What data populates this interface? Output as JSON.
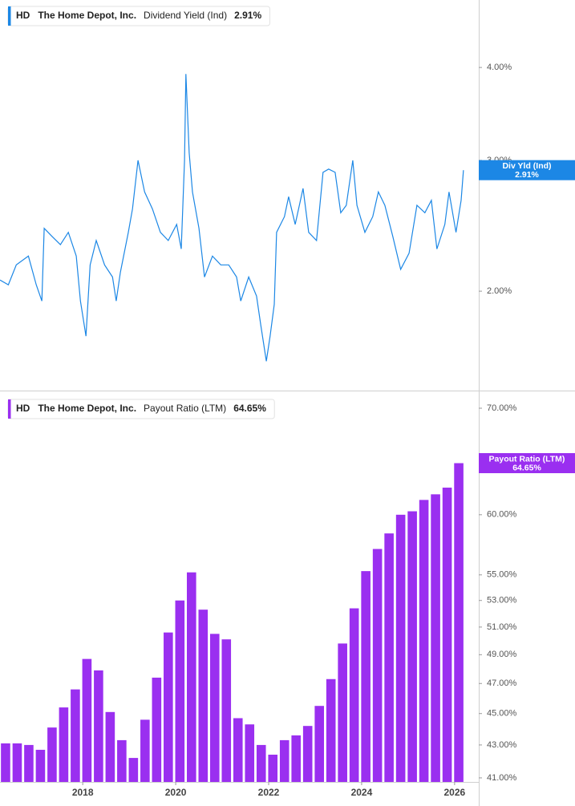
{
  "chart_data": [
    {
      "type": "line",
      "ticker": "HD",
      "company": "The Home Depot, Inc.",
      "log_scale": true,
      "xlim": [
        2016.22,
        2026.52
      ],
      "ylim": [
        1.47,
        4.93
      ],
      "yticks": [
        {
          "value": 2,
          "label": "2.00%"
        },
        {
          "value": 3,
          "label": "3.00%"
        },
        {
          "value": 4,
          "label": "4.00%"
        }
      ],
      "series": [
        {
          "name": "Dividend Yield (Ind)",
          "short_name": "Div Yld (Ind)",
          "color": "#1c87e5",
          "last_value_label": "2.91%",
          "x": [
            2016.22,
            2016.4,
            2016.57,
            2016.83,
            2017.0,
            2017.12,
            2017.17,
            2017.34,
            2017.52,
            2017.69,
            2017.86,
            2017.95,
            2018.07,
            2018.16,
            2018.29,
            2018.47,
            2018.64,
            2018.72,
            2018.81,
            2018.98,
            2019.07,
            2019.19,
            2019.33,
            2019.5,
            2019.67,
            2019.84,
            2020.02,
            2020.12,
            2020.19,
            2020.22,
            2020.29,
            2020.36,
            2020.5,
            2020.62,
            2020.79,
            2020.97,
            2021.14,
            2021.31,
            2021.4,
            2021.57,
            2021.74,
            2021.83,
            2021.95,
            2022.03,
            2022.12,
            2022.17,
            2022.34,
            2022.43,
            2022.57,
            2022.74,
            2022.86,
            2023.03,
            2023.17,
            2023.29,
            2023.43,
            2023.55,
            2023.67,
            2023.81,
            2023.9,
            2024.07,
            2024.24,
            2024.36,
            2024.5,
            2024.67,
            2024.84,
            2025.02,
            2025.19,
            2025.36,
            2025.5,
            2025.62,
            2025.79,
            2025.88,
            2026.03,
            2026.14,
            2026.19
          ],
          "values": [
            2.07,
            2.04,
            2.17,
            2.23,
            2.04,
            1.94,
            2.43,
            2.37,
            2.31,
            2.4,
            2.23,
            1.94,
            1.74,
            2.17,
            2.34,
            2.17,
            2.09,
            1.94,
            2.12,
            2.4,
            2.58,
            3.0,
            2.72,
            2.58,
            2.4,
            2.34,
            2.46,
            2.28,
            3.0,
            3.92,
            3.07,
            2.72,
            2.43,
            2.09,
            2.23,
            2.17,
            2.17,
            2.09,
            1.94,
            2.09,
            1.97,
            1.8,
            1.61,
            1.74,
            1.92,
            2.4,
            2.52,
            2.68,
            2.46,
            2.75,
            2.4,
            2.34,
            2.89,
            2.92,
            2.89,
            2.55,
            2.61,
            3.0,
            2.61,
            2.4,
            2.52,
            2.72,
            2.61,
            2.37,
            2.14,
            2.25,
            2.61,
            2.55,
            2.65,
            2.28,
            2.46,
            2.72,
            2.4,
            2.65,
            2.91
          ]
        }
      ]
    },
    {
      "type": "bar",
      "ticker": "HD",
      "company": "The Home Depot, Inc.",
      "log_scale": true,
      "xlim": [
        2016.22,
        2026.52
      ],
      "ylim": [
        40.76,
        71.56
      ],
      "xticks": [
        2018,
        2020,
        2022,
        2024,
        2026
      ],
      "yticks": [
        {
          "value": 41,
          "label": "41.00%"
        },
        {
          "value": 43,
          "label": "43.00%"
        },
        {
          "value": 45,
          "label": "45.00%"
        },
        {
          "value": 47,
          "label": "47.00%"
        },
        {
          "value": 49,
          "label": "49.00%"
        },
        {
          "value": 51,
          "label": "51.00%"
        },
        {
          "value": 53,
          "label": "53.00%"
        },
        {
          "value": 55,
          "label": "55.00%"
        },
        {
          "value": 60,
          "label": "60.00%"
        },
        {
          "value": 70,
          "label": "70.00%"
        }
      ],
      "series": [
        {
          "name": "Payout Ratio (LTM)",
          "short_name": "Payout Ratio (LTM)",
          "color": "#9a2ff0",
          "last_value_label": "64.65%",
          "x": [
            2016.34,
            2016.59,
            2016.84,
            2017.09,
            2017.34,
            2017.59,
            2017.84,
            2018.09,
            2018.34,
            2018.59,
            2018.84,
            2019.09,
            2019.34,
            2019.59,
            2019.84,
            2020.09,
            2020.34,
            2020.59,
            2020.84,
            2021.09,
            2021.34,
            2021.59,
            2021.84,
            2022.09,
            2022.34,
            2022.59,
            2022.84,
            2023.09,
            2023.34,
            2023.59,
            2023.84,
            2024.09,
            2024.34,
            2024.59,
            2024.84,
            2025.09,
            2025.34,
            2025.59,
            2025.84,
            2026.09
          ],
          "values": [
            43.1,
            43.1,
            43.0,
            42.7,
            44.1,
            45.4,
            46.6,
            48.7,
            47.9,
            45.1,
            43.3,
            42.2,
            44.6,
            47.4,
            50.6,
            53.0,
            55.2,
            52.3,
            50.5,
            50.1,
            44.7,
            44.3,
            43.0,
            42.4,
            43.3,
            43.6,
            44.2,
            45.5,
            47.3,
            49.8,
            52.4,
            55.3,
            57.1,
            58.4,
            60.0,
            60.3,
            61.3,
            61.8,
            62.4,
            64.65
          ]
        }
      ]
    }
  ]
}
